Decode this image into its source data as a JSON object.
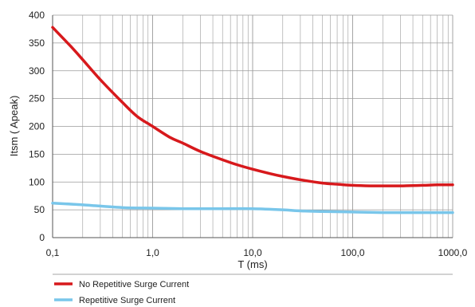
{
  "chart_data": {
    "type": "line",
    "xscale": "log",
    "xlim": [
      0.1,
      1000
    ],
    "ylim": [
      0,
      400
    ],
    "xlabel": "T (ms)",
    "ylabel": "Itsm ( Apeak)",
    "x_ticks": [
      0.1,
      1,
      10,
      100,
      1000
    ],
    "x_tick_labels": [
      "0,1",
      "1,0",
      "10,0",
      "100,0",
      "1000,0"
    ],
    "y_ticks": [
      0,
      50,
      100,
      150,
      200,
      250,
      300,
      350,
      400
    ],
    "y_tick_labels": [
      "0",
      "50",
      "100",
      "150",
      "200",
      "250",
      "300",
      "350",
      "400"
    ],
    "grid": "log-minor-vertical, major-horizontal",
    "legend_position": "bottom-left",
    "series": [
      {
        "name": "No Repetitive Surge Current",
        "color": "#d7191c",
        "x": [
          0.1,
          0.15,
          0.2,
          0.3,
          0.5,
          0.7,
          1.0,
          1.5,
          2,
          3,
          5,
          7,
          10,
          15,
          20,
          30,
          50,
          70,
          100,
          150,
          200,
          300,
          500,
          700,
          1000
        ],
        "y": [
          378,
          345,
          320,
          284,
          243,
          218,
          200,
          180,
          170,
          155,
          140,
          131,
          123,
          115,
          110,
          104,
          98,
          96,
          94,
          93,
          93,
          93,
          94,
          95,
          95
        ]
      },
      {
        "name": "Repetitive Surge Current",
        "color": "#79c6ea",
        "x": [
          0.1,
          0.2,
          0.5,
          1,
          2,
          5,
          10,
          20,
          30,
          50,
          100,
          200,
          500,
          1000
        ],
        "y": [
          62,
          59,
          54,
          53,
          52,
          52,
          52,
          50,
          48,
          47,
          46,
          45,
          45,
          45
        ]
      }
    ]
  }
}
